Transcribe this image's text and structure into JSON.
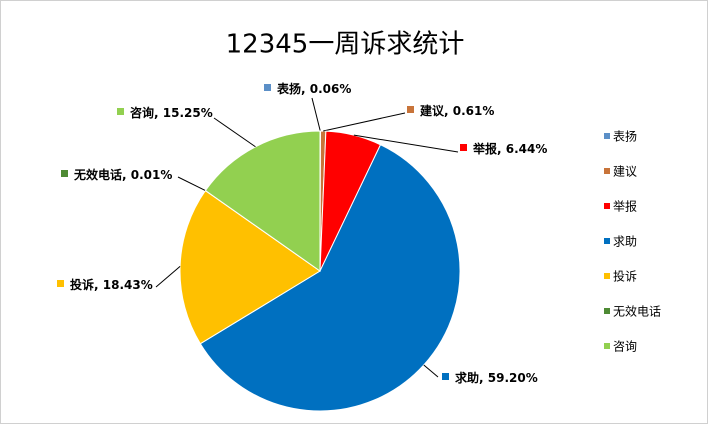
{
  "chart_data": {
    "type": "pie",
    "title": "12345一周诉求统计",
    "categories": [
      "表扬",
      "建议",
      "举报",
      "求助",
      "投诉",
      "无效电话",
      "咨询"
    ],
    "values": [
      0.06,
      0.61,
      6.44,
      59.2,
      18.43,
      0.01,
      15.25
    ],
    "value_labels": [
      "0.06%",
      "0.61%",
      "6.44%",
      "59.20%",
      "18.43%",
      "0.01%",
      "15.25%"
    ],
    "colors": [
      "#5b8fc7",
      "#c8743a",
      "#ff0000",
      "#0070c0",
      "#ffc000",
      "#4e8a34",
      "#92d050"
    ],
    "legend": "right"
  }
}
